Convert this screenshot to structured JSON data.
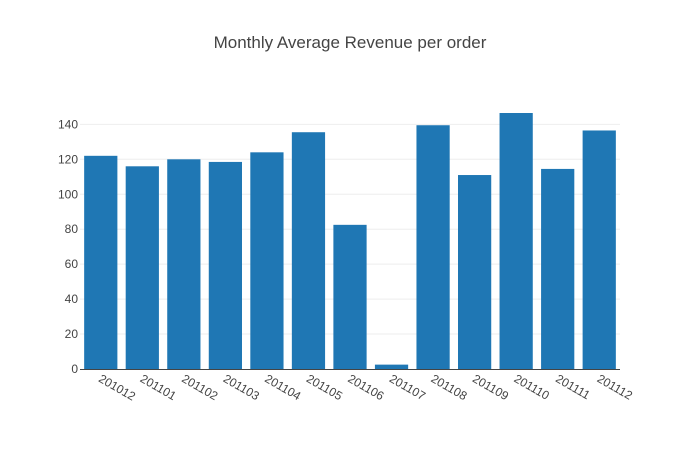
{
  "chart_data": {
    "type": "bar",
    "title": "Monthly Average Revenue per order",
    "xlabel": "",
    "ylabel": "",
    "categories": [
      "201012",
      "201101",
      "201102",
      "201103",
      "201104",
      "201105",
      "201106",
      "201107",
      "201108",
      "201109",
      "201110",
      "201111",
      "201112"
    ],
    "values": [
      122,
      116,
      120,
      118.5,
      124,
      135.5,
      82.5,
      2.5,
      139.5,
      111,
      146.5,
      114.5,
      136.5
    ],
    "ylim": [
      0,
      146.5
    ],
    "yticks": [
      0,
      20,
      40,
      60,
      80,
      100,
      120,
      140
    ],
    "grid": true,
    "bar_color": "#1f77b4",
    "grid_color": "#eeeeee",
    "text_color": "#444444"
  }
}
